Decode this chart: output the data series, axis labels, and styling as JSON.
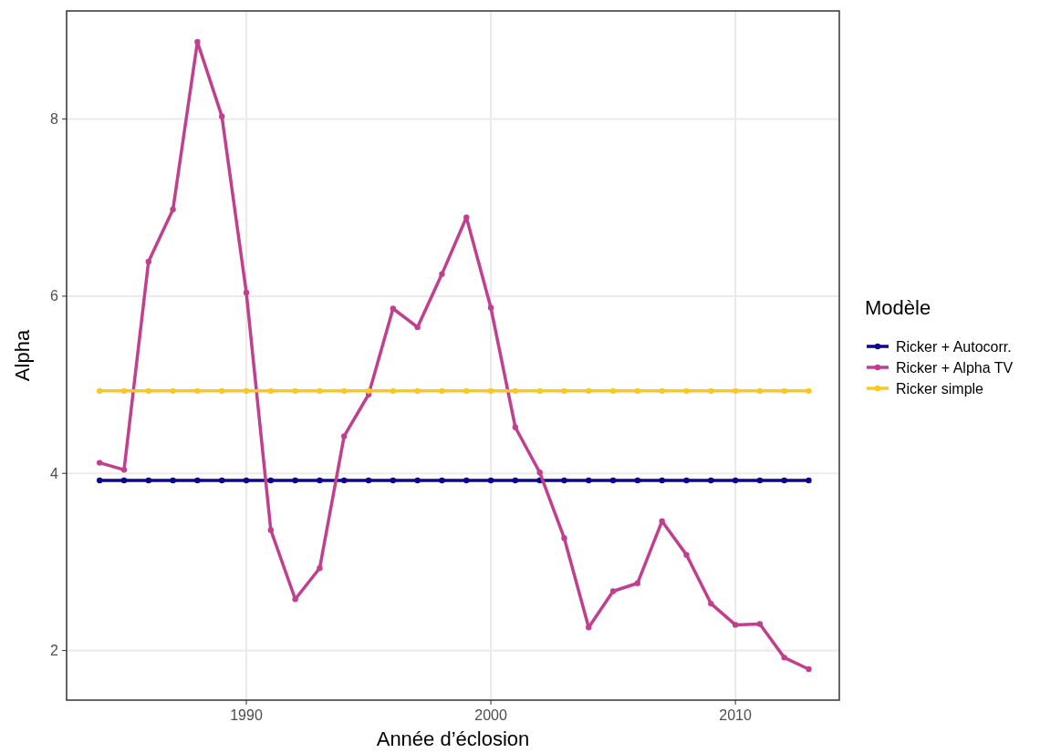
{
  "chart_data": {
    "type": "line",
    "xlabel": "Année d’éclosion",
    "ylabel": "Alpha",
    "legend_title": "Modèle",
    "legend": "right",
    "grid": true,
    "marker": "circle",
    "line_style": "solid",
    "x": [
      1984,
      1985,
      1986,
      1987,
      1988,
      1989,
      1990,
      1991,
      1992,
      1993,
      1994,
      1995,
      1996,
      1997,
      1998,
      1999,
      2000,
      2001,
      2002,
      2003,
      2004,
      2005,
      2006,
      2007,
      2008,
      2009,
      2010,
      2011,
      2012,
      2013
    ],
    "xlim": [
      1982.65,
      2014.25
    ],
    "xticks": [
      1990,
      2000,
      2010
    ],
    "ylim": [
      1.44,
      9.22
    ],
    "yticks": [
      2,
      4,
      6,
      8
    ],
    "series": [
      {
        "name": "Ricker + Autocorr.",
        "color": "#0d0887",
        "values": [
          3.92,
          3.92,
          3.92,
          3.92,
          3.92,
          3.92,
          3.92,
          3.92,
          3.92,
          3.92,
          3.92,
          3.92,
          3.92,
          3.92,
          3.92,
          3.92,
          3.92,
          3.92,
          3.92,
          3.92,
          3.92,
          3.92,
          3.92,
          3.92,
          3.92,
          3.92,
          3.92,
          3.92,
          3.92,
          3.92
        ]
      },
      {
        "name": "Ricker + Alpha TV",
        "color": "#c03f8f",
        "values": [
          4.12,
          4.04,
          6.39,
          6.98,
          8.87,
          8.03,
          6.04,
          3.36,
          2.58,
          2.93,
          4.42,
          4.89,
          5.86,
          5.65,
          6.25,
          6.89,
          5.87,
          4.52,
          4.01,
          3.27,
          2.26,
          2.67,
          2.76,
          3.46,
          3.08,
          2.53,
          2.29,
          2.3,
          1.92,
          1.79
        ]
      },
      {
        "name": "Ricker simple",
        "color": "#f8c827",
        "values": [
          4.93,
          4.93,
          4.93,
          4.93,
          4.93,
          4.93,
          4.93,
          4.93,
          4.93,
          4.93,
          4.93,
          4.93,
          4.93,
          4.93,
          4.93,
          4.93,
          4.93,
          4.93,
          4.93,
          4.93,
          4.93,
          4.93,
          4.93,
          4.93,
          4.93,
          4.93,
          4.93,
          4.93,
          4.93,
          4.93
        ]
      }
    ]
  }
}
